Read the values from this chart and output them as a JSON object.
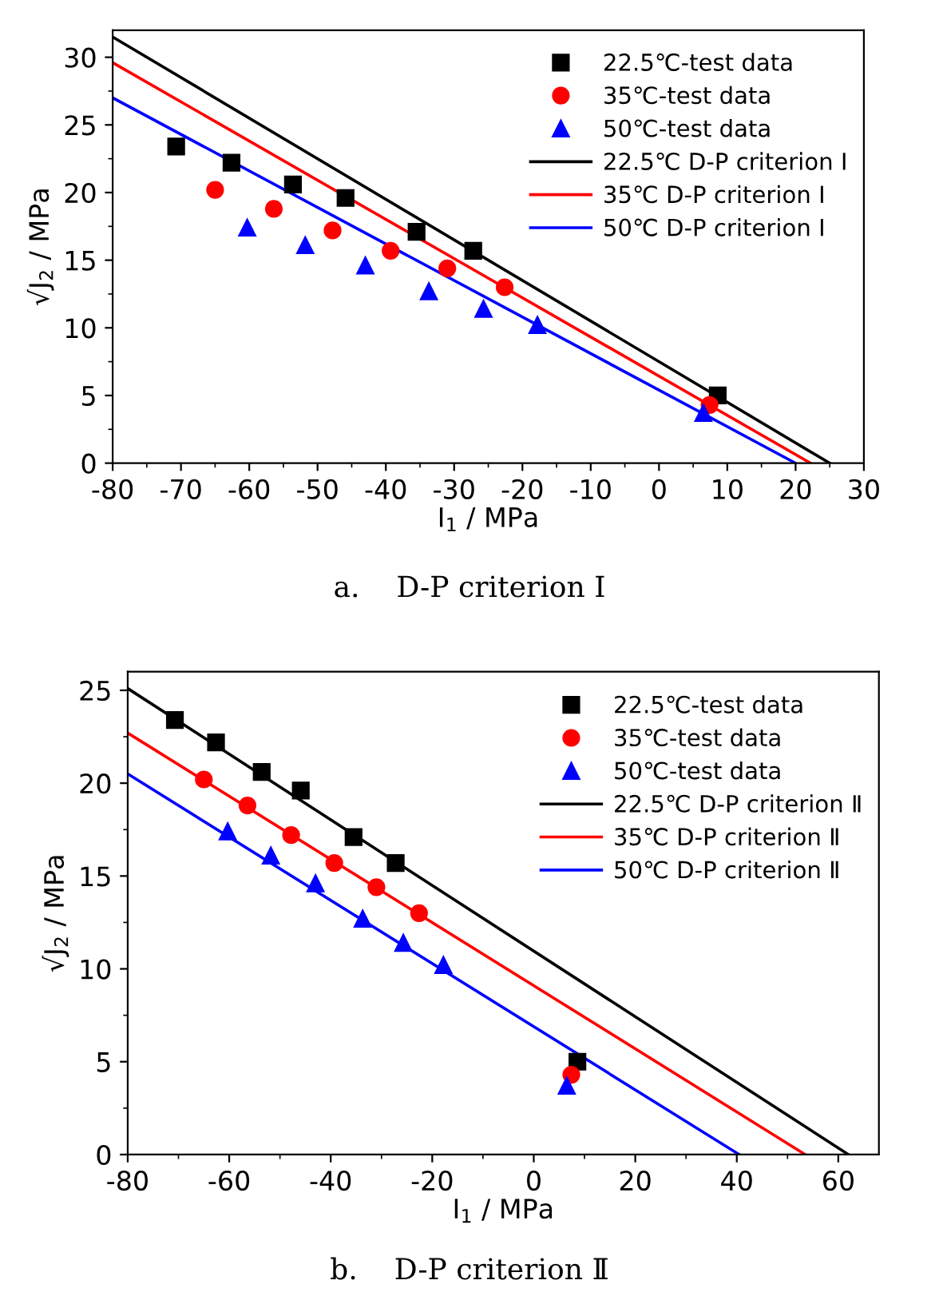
{
  "chart_data": [
    {
      "type": "scatter",
      "xlabel": "I$_{1}$ / MPa",
      "ylabel": "√J$_{2}$ / MPa",
      "annotations": [
        "a.    D-P criterion Ⅰ"
      ],
      "xlim": [
        -80,
        30
      ],
      "xticks": [
        -80,
        -70,
        -60,
        -50,
        -40,
        -30,
        -20,
        -10,
        0,
        10,
        20,
        30
      ],
      "ylim": [
        0,
        32
      ],
      "yticks": [
        0,
        5,
        10,
        15,
        20,
        25,
        30
      ],
      "legend": "top right",
      "grid": false,
      "series": [
        {
          "name": "22.5℃-test data",
          "color": "#000000",
          "marker": "square",
          "x": [
            -70.7,
            -62.6,
            -53.6,
            -45.9,
            -35.5,
            -27.2,
            8.6
          ],
          "values": [
            23.4,
            22.2,
            20.6,
            19.6,
            17.1,
            15.7,
            5.0
          ]
        },
        {
          "name": "35℃-test data",
          "color": "#ff0000",
          "marker": "circle",
          "x": [
            -65.0,
            -56.4,
            -47.8,
            -39.3,
            -31.0,
            -22.6,
            7.4
          ],
          "values": [
            20.2,
            18.8,
            17.2,
            15.7,
            14.4,
            13.0,
            4.3
          ]
        },
        {
          "name": "50℃-test data",
          "color": "#0000ff",
          "marker": "triangle",
          "x": [
            -60.3,
            -51.8,
            -43.0,
            -33.7,
            -25.7,
            -17.8,
            6.5
          ],
          "values": [
            17.4,
            16.1,
            14.6,
            12.7,
            11.4,
            10.2,
            3.7
          ]
        },
        {
          "name": "22.5℃ D-P criterion Ⅰ",
          "type": "line",
          "color": "#000000",
          "x": [
            -80,
            25
          ],
          "values": [
            31.5,
            0
          ]
        },
        {
          "name": "35℃ D-P criterion Ⅰ",
          "type": "line",
          "color": "#ff0000",
          "x": [
            -80,
            22.2
          ],
          "values": [
            29.6,
            0
          ]
        },
        {
          "name": "50℃ D-P criterion Ⅰ",
          "type": "line",
          "color": "#0000ff",
          "x": [
            -80,
            20
          ],
          "values": [
            27.0,
            0
          ]
        }
      ]
    },
    {
      "type": "scatter",
      "xlabel": "I$_{1}$ / MPa",
      "ylabel": "√J$_{2}$ / MPa",
      "annotations": [
        "b.    D-P criterion Ⅱ"
      ],
      "xlim": [
        -80,
        68
      ],
      "xticks": [
        -80,
        -60,
        -40,
        -20,
        0,
        20,
        40,
        60
      ],
      "ylim": [
        0,
        26
      ],
      "yticks": [
        0,
        5,
        10,
        15,
        20,
        25
      ],
      "legend": "top right",
      "grid": false,
      "series": [
        {
          "name": "22.5℃-test data",
          "color": "#000000",
          "marker": "square",
          "x": [
            -70.7,
            -62.6,
            -53.6,
            -45.9,
            -35.5,
            -27.2,
            8.6
          ],
          "values": [
            23.4,
            22.2,
            20.6,
            19.6,
            17.1,
            15.7,
            5.0
          ]
        },
        {
          "name": "35℃-test data",
          "color": "#ff0000",
          "marker": "circle",
          "x": [
            -65.0,
            -56.4,
            -47.8,
            -39.3,
            -31.0,
            -22.6,
            7.4
          ],
          "values": [
            20.2,
            18.8,
            17.2,
            15.7,
            14.4,
            13.0,
            4.3
          ]
        },
        {
          "name": "50℃-test data",
          "color": "#0000ff",
          "marker": "triangle",
          "x": [
            -60.3,
            -51.8,
            -43.0,
            -33.7,
            -25.7,
            -17.8,
            6.5
          ],
          "values": [
            17.4,
            16.1,
            14.6,
            12.7,
            11.4,
            10.2,
            3.7
          ]
        },
        {
          "name": "22.5℃ D-P criterion Ⅱ",
          "type": "line",
          "color": "#000000",
          "x": [
            -80,
            62
          ],
          "values": [
            25.1,
            0
          ]
        },
        {
          "name": "35℃ D-P criterion Ⅱ",
          "type": "line",
          "color": "#ff0000",
          "x": [
            -80,
            53.5
          ],
          "values": [
            22.7,
            0
          ]
        },
        {
          "name": "50℃ D-P criterion Ⅱ",
          "type": "line",
          "color": "#0000ff",
          "x": [
            -80,
            40.5
          ],
          "values": [
            20.5,
            0
          ]
        }
      ]
    }
  ]
}
